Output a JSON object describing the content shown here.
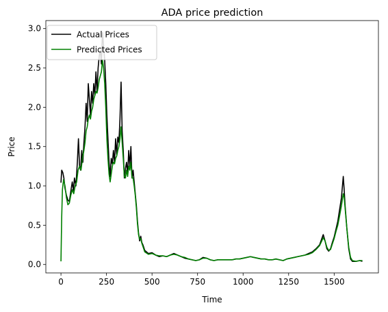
{
  "chart_data": {
    "type": "line",
    "title": "ADA price prediction",
    "xlabel": "Time",
    "ylabel": "Price",
    "xlim": [
      -83,
      1743
    ],
    "ylim": [
      -0.107,
      3.102
    ],
    "xticks": [
      "0",
      "250",
      "500",
      "750",
      "1000",
      "1250",
      "1500"
    ],
    "yticks": [
      "0.0",
      "0.5",
      "1.0",
      "1.5",
      "2.0",
      "2.5",
      "3.0"
    ],
    "grid": false,
    "legend_position": "upper-left",
    "series": [
      {
        "name": "Actual Prices",
        "color": "#000000",
        "points": [
          [
            0,
            1.04
          ],
          [
            4,
            1.2
          ],
          [
            10,
            1.17
          ],
          [
            16,
            1.1
          ],
          [
            22,
            0.97
          ],
          [
            30,
            0.88
          ],
          [
            38,
            0.82
          ],
          [
            46,
            0.8
          ],
          [
            54,
            0.93
          ],
          [
            62,
            1.05
          ],
          [
            68,
            0.94
          ],
          [
            74,
            1.1
          ],
          [
            82,
            1.0
          ],
          [
            90,
            1.3
          ],
          [
            96,
            1.6
          ],
          [
            102,
            1.25
          ],
          [
            108,
            1.2
          ],
          [
            114,
            1.45
          ],
          [
            120,
            1.3
          ],
          [
            126,
            1.55
          ],
          [
            132,
            1.75
          ],
          [
            138,
            2.05
          ],
          [
            144,
            1.82
          ],
          [
            150,
            2.3
          ],
          [
            156,
            2.1
          ],
          [
            162,
            1.9
          ],
          [
            168,
            2.2
          ],
          [
            174,
            2.05
          ],
          [
            180,
            2.3
          ],
          [
            186,
            2.15
          ],
          [
            192,
            2.45
          ],
          [
            198,
            2.2
          ],
          [
            204,
            2.5
          ],
          [
            210,
            2.65
          ],
          [
            216,
            2.72
          ],
          [
            222,
            2.55
          ],
          [
            228,
            2.95
          ],
          [
            234,
            2.78
          ],
          [
            240,
            2.6
          ],
          [
            246,
            2.3
          ],
          [
            252,
            1.9
          ],
          [
            258,
            1.6
          ],
          [
            264,
            1.3
          ],
          [
            270,
            1.12
          ],
          [
            276,
            1.35
          ],
          [
            282,
            1.28
          ],
          [
            288,
            1.45
          ],
          [
            294,
            1.3
          ],
          [
            300,
            1.6
          ],
          [
            306,
            1.4
          ],
          [
            312,
            1.62
          ],
          [
            318,
            1.55
          ],
          [
            324,
            1.85
          ],
          [
            330,
            2.32
          ],
          [
            336,
            1.7
          ],
          [
            342,
            1.45
          ],
          [
            348,
            1.1
          ],
          [
            354,
            1.22
          ],
          [
            360,
            1.3
          ],
          [
            366,
            1.15
          ],
          [
            372,
            1.45
          ],
          [
            378,
            1.25
          ],
          [
            384,
            1.5
          ],
          [
            390,
            1.1
          ],
          [
            396,
            1.2
          ],
          [
            402,
            1.05
          ],
          [
            408,
            0.9
          ],
          [
            414,
            0.75
          ],
          [
            420,
            0.55
          ],
          [
            426,
            0.4
          ],
          [
            432,
            0.3
          ],
          [
            438,
            0.36
          ],
          [
            444,
            0.28
          ],
          [
            450,
            0.25
          ],
          [
            460,
            0.18
          ],
          [
            480,
            0.14
          ],
          [
            500,
            0.15
          ],
          [
            520,
            0.12
          ],
          [
            540,
            0.1
          ],
          [
            560,
            0.11
          ],
          [
            580,
            0.1
          ],
          [
            600,
            0.12
          ],
          [
            620,
            0.14
          ],
          [
            640,
            0.12
          ],
          [
            660,
            0.1
          ],
          [
            680,
            0.08
          ],
          [
            700,
            0.07
          ],
          [
            720,
            0.06
          ],
          [
            740,
            0.05
          ],
          [
            760,
            0.06
          ],
          [
            780,
            0.09
          ],
          [
            800,
            0.08
          ],
          [
            820,
            0.06
          ],
          [
            840,
            0.05
          ],
          [
            860,
            0.06
          ],
          [
            880,
            0.06
          ],
          [
            900,
            0.06
          ],
          [
            920,
            0.06
          ],
          [
            940,
            0.06
          ],
          [
            960,
            0.07
          ],
          [
            980,
            0.07
          ],
          [
            1000,
            0.08
          ],
          [
            1020,
            0.09
          ],
          [
            1040,
            0.1
          ],
          [
            1060,
            0.09
          ],
          [
            1080,
            0.08
          ],
          [
            1100,
            0.07
          ],
          [
            1120,
            0.07
          ],
          [
            1140,
            0.06
          ],
          [
            1160,
            0.06
          ],
          [
            1180,
            0.07
          ],
          [
            1200,
            0.06
          ],
          [
            1220,
            0.05
          ],
          [
            1240,
            0.07
          ],
          [
            1260,
            0.08
          ],
          [
            1280,
            0.09
          ],
          [
            1300,
            0.1
          ],
          [
            1320,
            0.11
          ],
          [
            1340,
            0.12
          ],
          [
            1360,
            0.14
          ],
          [
            1380,
            0.16
          ],
          [
            1400,
            0.2
          ],
          [
            1420,
            0.25
          ],
          [
            1440,
            0.38
          ],
          [
            1450,
            0.3
          ],
          [
            1460,
            0.2
          ],
          [
            1470,
            0.17
          ],
          [
            1480,
            0.2
          ],
          [
            1490,
            0.28
          ],
          [
            1500,
            0.35
          ],
          [
            1510,
            0.45
          ],
          [
            1520,
            0.55
          ],
          [
            1530,
            0.7
          ],
          [
            1540,
            0.85
          ],
          [
            1550,
            1.12
          ],
          [
            1555,
            0.95
          ],
          [
            1560,
            0.75
          ],
          [
            1570,
            0.45
          ],
          [
            1580,
            0.2
          ],
          [
            1590,
            0.07
          ],
          [
            1600,
            0.04
          ],
          [
            1620,
            0.04
          ],
          [
            1640,
            0.05
          ],
          [
            1655,
            0.04
          ]
        ]
      },
      {
        "name": "Predicted Prices",
        "color": "#008000",
        "points": [
          [
            0,
            0.04
          ],
          [
            4,
            0.6
          ],
          [
            8,
            0.95
          ],
          [
            14,
            1.08
          ],
          [
            22,
            1.0
          ],
          [
            30,
            0.85
          ],
          [
            38,
            0.76
          ],
          [
            46,
            0.78
          ],
          [
            54,
            0.88
          ],
          [
            62,
            0.95
          ],
          [
            70,
            0.9
          ],
          [
            78,
            1.0
          ],
          [
            86,
            1.05
          ],
          [
            94,
            1.2
          ],
          [
            102,
            1.25
          ],
          [
            110,
            1.2
          ],
          [
            118,
            1.35
          ],
          [
            126,
            1.45
          ],
          [
            132,
            1.55
          ],
          [
            138,
            1.7
          ],
          [
            144,
            1.75
          ],
          [
            150,
            1.85
          ],
          [
            156,
            1.9
          ],
          [
            162,
            1.85
          ],
          [
            168,
            1.95
          ],
          [
            174,
            2.0
          ],
          [
            180,
            2.1
          ],
          [
            186,
            2.15
          ],
          [
            192,
            2.2
          ],
          [
            198,
            2.18
          ],
          [
            204,
            2.25
          ],
          [
            210,
            2.35
          ],
          [
            216,
            2.4
          ],
          [
            222,
            2.45
          ],
          [
            228,
            2.6
          ],
          [
            234,
            2.5
          ],
          [
            240,
            2.3
          ],
          [
            246,
            2.0
          ],
          [
            252,
            1.6
          ],
          [
            258,
            1.35
          ],
          [
            264,
            1.15
          ],
          [
            270,
            1.05
          ],
          [
            276,
            1.15
          ],
          [
            282,
            1.25
          ],
          [
            288,
            1.3
          ],
          [
            294,
            1.28
          ],
          [
            300,
            1.35
          ],
          [
            306,
            1.38
          ],
          [
            312,
            1.45
          ],
          [
            318,
            1.5
          ],
          [
            324,
            1.6
          ],
          [
            330,
            1.75
          ],
          [
            336,
            1.55
          ],
          [
            342,
            1.35
          ],
          [
            348,
            1.12
          ],
          [
            354,
            1.1
          ],
          [
            360,
            1.2
          ],
          [
            366,
            1.12
          ],
          [
            372,
            1.25
          ],
          [
            378,
            1.2
          ],
          [
            384,
            1.3
          ],
          [
            390,
            1.1
          ],
          [
            396,
            1.1
          ],
          [
            402,
            1.0
          ],
          [
            408,
            0.88
          ],
          [
            414,
            0.72
          ],
          [
            420,
            0.52
          ],
          [
            426,
            0.38
          ],
          [
            432,
            0.32
          ],
          [
            438,
            0.33
          ],
          [
            444,
            0.27
          ],
          [
            450,
            0.23
          ],
          [
            460,
            0.16
          ],
          [
            480,
            0.13
          ],
          [
            500,
            0.14
          ],
          [
            520,
            0.12
          ],
          [
            540,
            0.11
          ],
          [
            560,
            0.11
          ],
          [
            580,
            0.1
          ],
          [
            600,
            0.12
          ],
          [
            620,
            0.13
          ],
          [
            640,
            0.12
          ],
          [
            660,
            0.1
          ],
          [
            680,
            0.09
          ],
          [
            700,
            0.07
          ],
          [
            720,
            0.06
          ],
          [
            740,
            0.05
          ],
          [
            760,
            0.06
          ],
          [
            780,
            0.08
          ],
          [
            800,
            0.08
          ],
          [
            820,
            0.06
          ],
          [
            840,
            0.05
          ],
          [
            860,
            0.06
          ],
          [
            880,
            0.06
          ],
          [
            900,
            0.06
          ],
          [
            920,
            0.06
          ],
          [
            940,
            0.06
          ],
          [
            960,
            0.07
          ],
          [
            980,
            0.07
          ],
          [
            1000,
            0.08
          ],
          [
            1020,
            0.09
          ],
          [
            1040,
            0.1
          ],
          [
            1060,
            0.09
          ],
          [
            1080,
            0.08
          ],
          [
            1100,
            0.07
          ],
          [
            1120,
            0.07
          ],
          [
            1140,
            0.06
          ],
          [
            1160,
            0.06
          ],
          [
            1180,
            0.07
          ],
          [
            1200,
            0.06
          ],
          [
            1220,
            0.05
          ],
          [
            1240,
            0.07
          ],
          [
            1260,
            0.08
          ],
          [
            1280,
            0.09
          ],
          [
            1300,
            0.1
          ],
          [
            1320,
            0.11
          ],
          [
            1340,
            0.12
          ],
          [
            1360,
            0.13
          ],
          [
            1380,
            0.15
          ],
          [
            1400,
            0.19
          ],
          [
            1420,
            0.24
          ],
          [
            1440,
            0.34
          ],
          [
            1450,
            0.3
          ],
          [
            1460,
            0.22
          ],
          [
            1470,
            0.18
          ],
          [
            1480,
            0.19
          ],
          [
            1490,
            0.26
          ],
          [
            1500,
            0.33
          ],
          [
            1510,
            0.42
          ],
          [
            1520,
            0.5
          ],
          [
            1530,
            0.62
          ],
          [
            1540,
            0.75
          ],
          [
            1550,
            0.9
          ],
          [
            1555,
            0.85
          ],
          [
            1560,
            0.72
          ],
          [
            1570,
            0.45
          ],
          [
            1580,
            0.22
          ],
          [
            1590,
            0.09
          ],
          [
            1600,
            0.05
          ],
          [
            1620,
            0.04
          ],
          [
            1640,
            0.05
          ],
          [
            1655,
            0.05
          ]
        ]
      }
    ]
  }
}
